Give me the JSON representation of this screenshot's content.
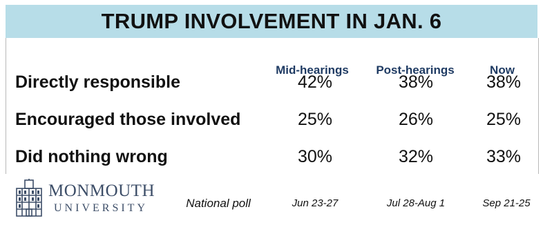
{
  "chart_data": {
    "type": "table",
    "title": "TRUMP INVOLVEMENT IN JAN. 6",
    "columns": [
      "Mid-hearings",
      "Post-hearings",
      "Now"
    ],
    "rows": [
      {
        "label": "Directly responsible",
        "values": [
          "42%",
          "38%",
          "38%"
        ]
      },
      {
        "label": "Encouraged those involved",
        "values": [
          "25%",
          "26%",
          "25%"
        ]
      },
      {
        "label": "Did nothing wrong",
        "values": [
          "30%",
          "32%",
          "33%"
        ]
      }
    ],
    "series": [
      {
        "name": "Mid-hearings",
        "values": [
          42,
          25,
          30
        ]
      },
      {
        "name": "Post-hearings",
        "values": [
          38,
          26,
          32
        ]
      },
      {
        "name": "Now",
        "values": [
          38,
          25,
          33
        ]
      }
    ],
    "categories": [
      "Directly responsible",
      "Encouraged those involved",
      "Did nothing wrong"
    ],
    "date_ranges": [
      "Jun 23-27",
      "Jul 28-Aug 1",
      "Sep 21-25"
    ]
  },
  "footer": {
    "logo_main": "MONMOUTH",
    "logo_sub": "UNIVERSITY",
    "note": "National poll"
  },
  "colors": {
    "title_bg": "#b7dde8",
    "column_header": "#1f3b63",
    "logo": "#3d4e68"
  }
}
